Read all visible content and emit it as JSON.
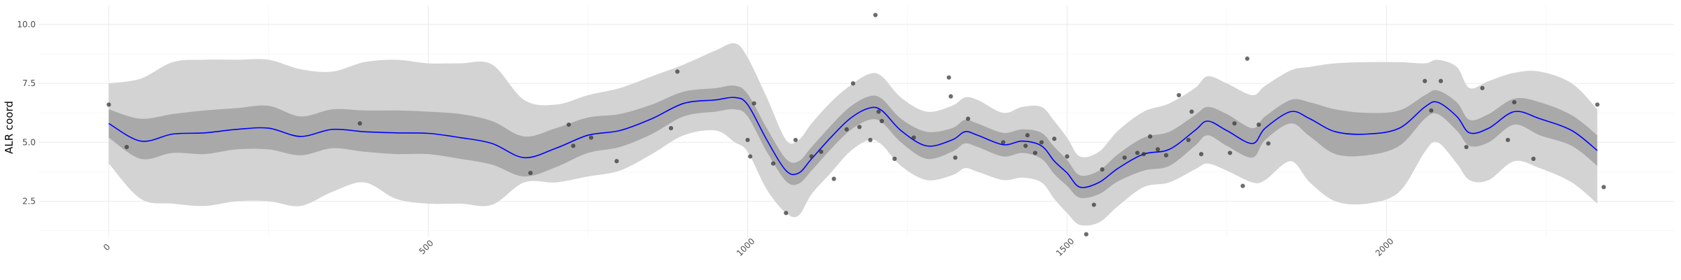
{
  "chart_data": {
    "type": "line",
    "title": "",
    "xlabel": "",
    "ylabel": "ALR coord",
    "xlim": [
      -110,
      2450
    ],
    "ylim": [
      1.0,
      10.8
    ],
    "x_ticks": [
      0,
      500,
      1000,
      1500,
      2000
    ],
    "x_tick_labels": [
      "0",
      "500",
      "1000",
      "1500",
      "2000"
    ],
    "x_minor_ticks": [
      250,
      750,
      1250,
      1750,
      2250
    ],
    "y_ticks": [
      2.5,
      5.0,
      7.5,
      10.0
    ],
    "y_tick_labels": [
      "2.5",
      "5.0",
      "7.5",
      "10.0"
    ],
    "y_minor_ticks": [
      1.25,
      3.75,
      6.25,
      8.75
    ],
    "grid": true,
    "colors": {
      "mean_line": "#0000ff",
      "inner_band": "#a9a9a9",
      "outer_band": "#d3d3d3",
      "points": "#333333"
    },
    "series": [
      {
        "kind": "line",
        "x": [
          0,
          50,
          100,
          150,
          200,
          250,
          300,
          350,
          400,
          450,
          500,
          550,
          600,
          650,
          700,
          750,
          800,
          850,
          900,
          950,
          980,
          1000,
          1030,
          1060,
          1080,
          1100,
          1130,
          1160,
          1190,
          1210,
          1240,
          1280,
          1320,
          1340,
          1360,
          1400,
          1430,
          1460,
          1480,
          1500,
          1520,
          1550,
          1580,
          1620,
          1660,
          1700,
          1720,
          1750,
          1790,
          1810,
          1850,
          1880,
          1920,
          1970,
          2020,
          2060,
          2080,
          2110,
          2130,
          2160,
          2200,
          2240,
          2290,
          2330
        ],
        "y": [
          5.8,
          5.05,
          5.35,
          5.4,
          5.55,
          5.6,
          5.25,
          5.55,
          5.45,
          5.4,
          5.38,
          5.2,
          4.95,
          4.35,
          4.75,
          5.3,
          5.5,
          6.0,
          6.65,
          6.8,
          6.9,
          6.6,
          5.1,
          3.8,
          3.7,
          4.3,
          5.2,
          6.0,
          6.45,
          6.35,
          5.5,
          4.85,
          5.1,
          5.45,
          5.3,
          4.9,
          5.05,
          4.85,
          4.2,
          3.7,
          3.1,
          3.3,
          3.9,
          4.5,
          4.7,
          5.5,
          5.9,
          5.5,
          4.95,
          5.6,
          6.3,
          6.0,
          5.45,
          5.35,
          5.6,
          6.5,
          6.7,
          6.1,
          5.4,
          5.6,
          6.3,
          6.0,
          5.5,
          4.65
        ]
      },
      {
        "kind": "band",
        "level": "inner",
        "x": [
          0,
          50,
          100,
          150,
          200,
          250,
          300,
          350,
          400,
          450,
          500,
          550,
          600,
          650,
          700,
          750,
          800,
          850,
          900,
          950,
          980,
          1000,
          1030,
          1060,
          1080,
          1100,
          1130,
          1160,
          1190,
          1210,
          1240,
          1280,
          1320,
          1340,
          1360,
          1400,
          1430,
          1460,
          1480,
          1500,
          1520,
          1550,
          1580,
          1620,
          1660,
          1700,
          1720,
          1750,
          1790,
          1810,
          1850,
          1880,
          1920,
          1970,
          2020,
          2060,
          2080,
          2110,
          2130,
          2160,
          2200,
          2240,
          2290,
          2330
        ],
        "upper": [
          6.4,
          6.0,
          6.2,
          6.35,
          6.45,
          6.55,
          6.1,
          6.4,
          6.35,
          6.35,
          6.3,
          6.2,
          5.9,
          5.25,
          5.6,
          6.05,
          6.2,
          6.6,
          7.15,
          7.3,
          7.4,
          7.05,
          5.6,
          4.3,
          4.2,
          4.8,
          5.7,
          6.5,
          6.95,
          6.85,
          6.0,
          5.45,
          5.6,
          5.95,
          5.8,
          5.4,
          5.55,
          5.4,
          4.8,
          4.25,
          3.6,
          3.8,
          4.5,
          5.2,
          5.45,
          6.15,
          6.5,
          6.2,
          5.6,
          6.1,
          6.8,
          6.7,
          6.4,
          6.25,
          6.35,
          7.0,
          7.2,
          6.7,
          5.95,
          6.2,
          6.85,
          6.7,
          6.15,
          5.3
        ],
        "lower": [
          5.2,
          4.3,
          4.55,
          4.5,
          4.7,
          4.7,
          4.45,
          4.75,
          4.6,
          4.5,
          4.5,
          4.3,
          4.05,
          3.55,
          3.95,
          4.55,
          4.8,
          5.35,
          6.1,
          6.3,
          6.4,
          6.1,
          4.6,
          3.35,
          3.25,
          3.8,
          4.7,
          5.5,
          5.95,
          5.85,
          5.0,
          4.3,
          4.6,
          4.95,
          4.8,
          4.4,
          4.55,
          4.3,
          3.65,
          3.15,
          2.65,
          2.8,
          3.35,
          3.8,
          4.0,
          4.85,
          5.3,
          4.85,
          4.35,
          5.1,
          5.8,
          5.25,
          4.5,
          4.45,
          4.85,
          6.0,
          6.2,
          5.5,
          4.85,
          5.0,
          5.75,
          5.3,
          4.85,
          4.0
        ]
      },
      {
        "kind": "band",
        "level": "outer",
        "x": [
          0,
          50,
          100,
          150,
          200,
          250,
          300,
          350,
          400,
          450,
          500,
          550,
          600,
          650,
          700,
          750,
          800,
          850,
          900,
          950,
          980,
          1000,
          1030,
          1060,
          1080,
          1100,
          1130,
          1160,
          1190,
          1210,
          1240,
          1280,
          1320,
          1340,
          1360,
          1400,
          1430,
          1460,
          1480,
          1500,
          1520,
          1550,
          1580,
          1620,
          1660,
          1700,
          1720,
          1750,
          1790,
          1810,
          1850,
          1880,
          1920,
          1970,
          2020,
          2060,
          2080,
          2110,
          2130,
          2160,
          2200,
          2240,
          2290,
          2330
        ],
        "upper": [
          7.5,
          7.7,
          8.4,
          8.5,
          8.5,
          8.5,
          8.1,
          8.0,
          8.4,
          8.5,
          8.35,
          8.35,
          8.3,
          6.8,
          6.6,
          7.0,
          7.3,
          7.8,
          8.3,
          8.9,
          9.2,
          8.6,
          6.9,
          5.1,
          5.1,
          5.8,
          6.7,
          7.4,
          7.9,
          7.8,
          6.9,
          6.3,
          6.55,
          6.9,
          6.8,
          6.25,
          6.5,
          6.5,
          5.9,
          5.2,
          4.4,
          4.6,
          5.5,
          6.3,
          6.65,
          7.3,
          7.8,
          7.5,
          7.0,
          7.4,
          8.05,
          8.2,
          8.35,
          8.4,
          8.4,
          8.35,
          8.5,
          8.2,
          7.3,
          7.6,
          7.95,
          8.0,
          7.5,
          6.4
        ],
        "lower": [
          4.1,
          2.6,
          2.4,
          2.3,
          2.5,
          2.5,
          2.3,
          2.9,
          3.3,
          2.6,
          2.4,
          2.4,
          2.35,
          3.3,
          3.3,
          3.55,
          3.8,
          4.5,
          5.3,
          5.5,
          5.0,
          4.6,
          3.0,
          2.0,
          1.9,
          2.8,
          3.7,
          4.6,
          5.1,
          4.9,
          4.0,
          3.4,
          3.6,
          3.9,
          3.75,
          3.4,
          3.5,
          3.3,
          2.6,
          2.0,
          1.5,
          1.6,
          2.3,
          3.1,
          3.3,
          3.85,
          4.1,
          3.8,
          3.3,
          3.4,
          4.2,
          3.3,
          2.5,
          2.4,
          2.9,
          4.6,
          5.0,
          4.1,
          3.4,
          3.4,
          4.2,
          3.9,
          3.3,
          2.4
        ]
      },
      {
        "kind": "points",
        "x": [
          0,
          28,
          393,
          660,
          720,
          727,
          755,
          795,
          880,
          890,
          1000,
          1004,
          1010,
          1040,
          1060,
          1075,
          1100,
          1115,
          1135,
          1155,
          1165,
          1175,
          1192,
          1200,
          1205,
          1210,
          1230,
          1260,
          1315,
          1318,
          1325,
          1345,
          1400,
          1435,
          1438,
          1450,
          1460,
          1480,
          1500,
          1530,
          1542,
          1555,
          1590,
          1610,
          1620,
          1630,
          1642,
          1655,
          1675,
          1690,
          1695,
          1710,
          1755,
          1762,
          1775,
          1782,
          1800,
          1815,
          2060,
          2070,
          2085,
          2125,
          2150,
          2190,
          2200,
          2230,
          2330,
          2340
        ],
        "y": [
          6.6,
          4.8,
          5.8,
          3.7,
          5.75,
          4.85,
          5.2,
          4.2,
          5.6,
          8.0,
          5.1,
          4.4,
          6.65,
          4.1,
          2.0,
          5.1,
          4.4,
          4.6,
          3.45,
          5.55,
          7.5,
          5.65,
          5.1,
          10.4,
          6.3,
          5.9,
          4.3,
          5.2,
          7.75,
          6.95,
          4.35,
          6.0,
          5.0,
          4.85,
          5.3,
          4.55,
          5.0,
          5.15,
          4.4,
          1.1,
          2.35,
          3.85,
          4.35,
          4.55,
          4.5,
          5.25,
          4.7,
          4.45,
          7.0,
          5.1,
          6.3,
          4.5,
          4.55,
          5.8,
          3.15,
          8.55,
          5.75,
          4.95,
          7.6,
          6.35,
          7.6,
          4.8,
          7.3,
          5.1,
          6.7,
          4.3,
          6.6,
          3.1
        ]
      }
    ]
  }
}
